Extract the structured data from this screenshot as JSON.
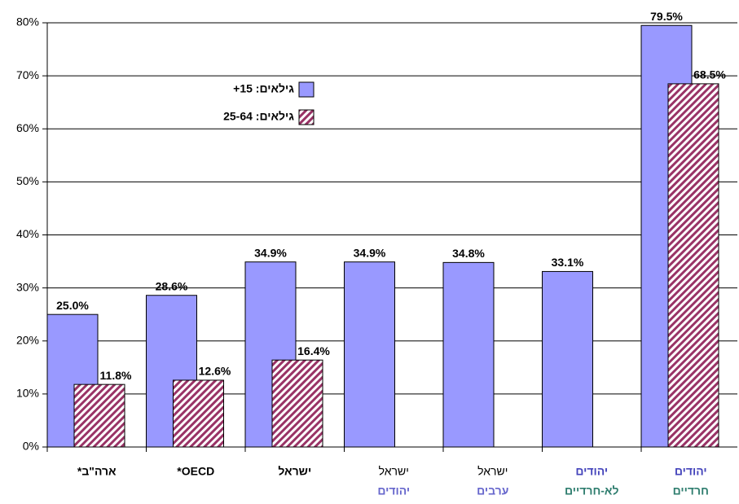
{
  "chart_data": {
    "type": "bar",
    "categories": [
      [
        "ארה\"ב*"
      ],
      [
        "OECD*"
      ],
      [
        "ישראל"
      ],
      [
        "ישראל",
        "יהודים"
      ],
      [
        "ישראל",
        "ערבים"
      ],
      [
        "יהודים",
        "לא-חרדיים"
      ],
      [
        "יהודים",
        "חרדיים"
      ]
    ],
    "category_colors": [
      [
        "#000000"
      ],
      [
        "#000000"
      ],
      [
        "#000000"
      ],
      [
        "#000000",
        "#6666cc"
      ],
      [
        "#000000",
        "#6666cc"
      ],
      [
        "#4444bb",
        "#2e7d6e"
      ],
      [
        "#4444bb",
        "#2e7d6e"
      ]
    ],
    "series": [
      {
        "name": "גילאים: 15+",
        "color": "#9999ff",
        "values": [
          25.0,
          28.6,
          34.9,
          34.9,
          34.8,
          33.1,
          79.5
        ],
        "value_labels": [
          "25.0%",
          "28.6%",
          "34.9%",
          "34.9%",
          "34.8%",
          "33.1%",
          "79.5%"
        ]
      },
      {
        "name": "גילאים: 25-64",
        "color": "#993366",
        "values": [
          11.8,
          12.6,
          16.4,
          null,
          null,
          null,
          68.5
        ],
        "value_labels": [
          "11.8%",
          "12.6%",
          "16.4%",
          null,
          null,
          null,
          "68.5%"
        ]
      }
    ],
    "ylim": [
      0,
      80
    ],
    "yticks": [
      {
        "value": 0,
        "label": "0%"
      },
      {
        "value": 10,
        "label": "10%"
      },
      {
        "value": 20,
        "label": "20%"
      },
      {
        "value": 30,
        "label": "30%"
      },
      {
        "value": 40,
        "label": "40%"
      },
      {
        "value": 50,
        "label": "50%"
      },
      {
        "value": 60,
        "label": "60%"
      },
      {
        "value": 70,
        "label": "70%"
      },
      {
        "value": 80,
        "label": "80%"
      }
    ],
    "grid": true
  }
}
